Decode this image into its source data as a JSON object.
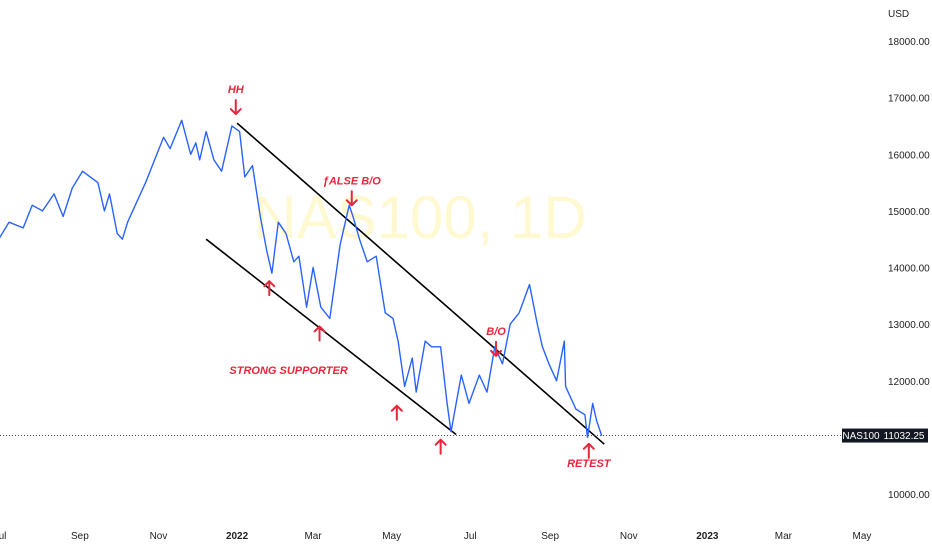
{
  "chart_data": {
    "type": "line",
    "symbol": "NAS100",
    "watermark": "NAS100, 1D",
    "currency": "USD",
    "last_price": "11032.25",
    "last_price_value": 11032.25,
    "ylim": [
      9700,
      18500
    ],
    "yticks": [
      {
        "value": 18000,
        "label": "18000.00"
      },
      {
        "value": 17000,
        "label": "17000.00"
      },
      {
        "value": 16000,
        "label": "16000.00"
      },
      {
        "value": 15000,
        "label": "15000.00"
      },
      {
        "value": 14000,
        "label": "14000.00"
      },
      {
        "value": 13000,
        "label": "13000.00"
      },
      {
        "value": 12000,
        "label": "12000.00"
      },
      {
        "value": 10000,
        "label": "10000.00"
      }
    ],
    "xlim": [
      "2021-07-01",
      "2023-05-15"
    ],
    "xticks": [
      {
        "date": "2021-07-01",
        "label": "Jul"
      },
      {
        "date": "2021-09-01",
        "label": "Sep"
      },
      {
        "date": "2021-11-01",
        "label": "Nov"
      },
      {
        "date": "2022-01-01",
        "label": "2022",
        "bold": true
      },
      {
        "date": "2022-03-01",
        "label": "Mar"
      },
      {
        "date": "2022-05-01",
        "label": "May"
      },
      {
        "date": "2022-07-01",
        "label": "Jul"
      },
      {
        "date": "2022-09-01",
        "label": "Sep"
      },
      {
        "date": "2022-11-01",
        "label": "Nov"
      },
      {
        "date": "2023-01-01",
        "label": "2023",
        "bold": true
      },
      {
        "date": "2023-03-01",
        "label": "Mar"
      },
      {
        "date": "2023-05-01",
        "label": "May"
      }
    ],
    "series": [
      {
        "color": "#2962ff",
        "points": [
          [
            "2021-06-30",
            14500
          ],
          [
            "2021-07-08",
            14800
          ],
          [
            "2021-07-19",
            14700
          ],
          [
            "2021-07-26",
            15100
          ],
          [
            "2021-08-03",
            15000
          ],
          [
            "2021-08-12",
            15300
          ],
          [
            "2021-08-19",
            14900
          ],
          [
            "2021-08-26",
            15400
          ],
          [
            "2021-09-03",
            15700
          ],
          [
            "2021-09-09",
            15600
          ],
          [
            "2021-09-15",
            15500
          ],
          [
            "2021-09-20",
            15000
          ],
          [
            "2021-09-24",
            15300
          ],
          [
            "2021-09-30",
            14600
          ],
          [
            "2021-10-04",
            14500
          ],
          [
            "2021-10-08",
            14800
          ],
          [
            "2021-10-14",
            15100
          ],
          [
            "2021-10-22",
            15500
          ],
          [
            "2021-10-29",
            15900
          ],
          [
            "2021-11-05",
            16300
          ],
          [
            "2021-11-10",
            16100
          ],
          [
            "2021-11-19",
            16600
          ],
          [
            "2021-11-26",
            16000
          ],
          [
            "2021-11-30",
            16200
          ],
          [
            "2021-12-03",
            15900
          ],
          [
            "2021-12-08",
            16400
          ],
          [
            "2021-12-14",
            15900
          ],
          [
            "2021-12-20",
            15700
          ],
          [
            "2021-12-28",
            16500
          ],
          [
            "2022-01-03",
            16400
          ],
          [
            "2022-01-07",
            15600
          ],
          [
            "2022-01-13",
            15800
          ],
          [
            "2022-01-19",
            14900
          ],
          [
            "2022-01-24",
            14300
          ],
          [
            "2022-01-28",
            13900
          ],
          [
            "2022-02-02",
            14800
          ],
          [
            "2022-02-08",
            14600
          ],
          [
            "2022-02-14",
            14100
          ],
          [
            "2022-02-18",
            14200
          ],
          [
            "2022-02-24",
            13300
          ],
          [
            "2022-03-01",
            14000
          ],
          [
            "2022-03-07",
            13300
          ],
          [
            "2022-03-14",
            13100
          ],
          [
            "2022-03-22",
            14400
          ],
          [
            "2022-03-29",
            15100
          ],
          [
            "2022-04-01",
            14900
          ],
          [
            "2022-04-06",
            14500
          ],
          [
            "2022-04-12",
            14100
          ],
          [
            "2022-04-19",
            14200
          ],
          [
            "2022-04-26",
            13200
          ],
          [
            "2022-05-02",
            13100
          ],
          [
            "2022-05-06",
            12700
          ],
          [
            "2022-05-11",
            11900
          ],
          [
            "2022-05-17",
            12400
          ],
          [
            "2022-05-20",
            11800
          ],
          [
            "2022-05-27",
            12700
          ],
          [
            "2022-06-01",
            12600
          ],
          [
            "2022-06-08",
            12600
          ],
          [
            "2022-06-13",
            11600
          ],
          [
            "2022-06-16",
            11100
          ],
          [
            "2022-06-24",
            12100
          ],
          [
            "2022-06-30",
            11600
          ],
          [
            "2022-07-08",
            12100
          ],
          [
            "2022-07-14",
            11800
          ],
          [
            "2022-07-20",
            12600
          ],
          [
            "2022-07-26",
            12300
          ],
          [
            "2022-08-01",
            13000
          ],
          [
            "2022-08-08",
            13200
          ],
          [
            "2022-08-16",
            13700
          ],
          [
            "2022-08-22",
            13000
          ],
          [
            "2022-08-26",
            12600
          ],
          [
            "2022-08-31",
            12300
          ],
          [
            "2022-09-06",
            12000
          ],
          [
            "2022-09-12",
            12700
          ],
          [
            "2022-09-13",
            11900
          ],
          [
            "2022-09-21",
            11500
          ],
          [
            "2022-09-28",
            11400
          ],
          [
            "2022-09-30",
            11000
          ],
          [
            "2022-10-04",
            11600
          ],
          [
            "2022-10-07",
            11300
          ],
          [
            "2022-10-11",
            11032
          ]
        ]
      }
    ],
    "trendlines": [
      {
        "from": [
          "2022-01-01",
          16550
        ],
        "to": [
          "2022-10-13",
          10880
        ]
      },
      {
        "from": [
          "2021-12-08",
          14500
        ],
        "to": [
          "2022-06-20",
          11050
        ]
      }
    ],
    "annotations": [
      {
        "text": "HH",
        "date": "2021-12-31",
        "value": 17080,
        "arrow": "down"
      },
      {
        "text": "ƒALSE B/O",
        "date": "2022-03-31",
        "value": 15470,
        "arrow": "down"
      },
      {
        "text": "B/O",
        "date": "2022-07-21",
        "value": 12810,
        "arrow": "down"
      },
      {
        "text": "STRONG SUPPORTER",
        "date": "2022-02-10",
        "value": 12120,
        "arrow": "none"
      },
      {
        "text": "RETEST",
        "date": "2022-10-01",
        "value": 10480,
        "arrow": "up"
      }
    ],
    "support_arrows": [
      {
        "date": "2022-01-26",
        "value": 13900
      },
      {
        "date": "2022-03-06",
        "value": 13100
      },
      {
        "date": "2022-05-05",
        "value": 11700
      },
      {
        "date": "2022-06-08",
        "value": 11100
      }
    ],
    "colors": {
      "line": "#2962ff",
      "annotation": "#e8263b",
      "trendline": "#000000",
      "watermark": "#fff9d2"
    }
  }
}
